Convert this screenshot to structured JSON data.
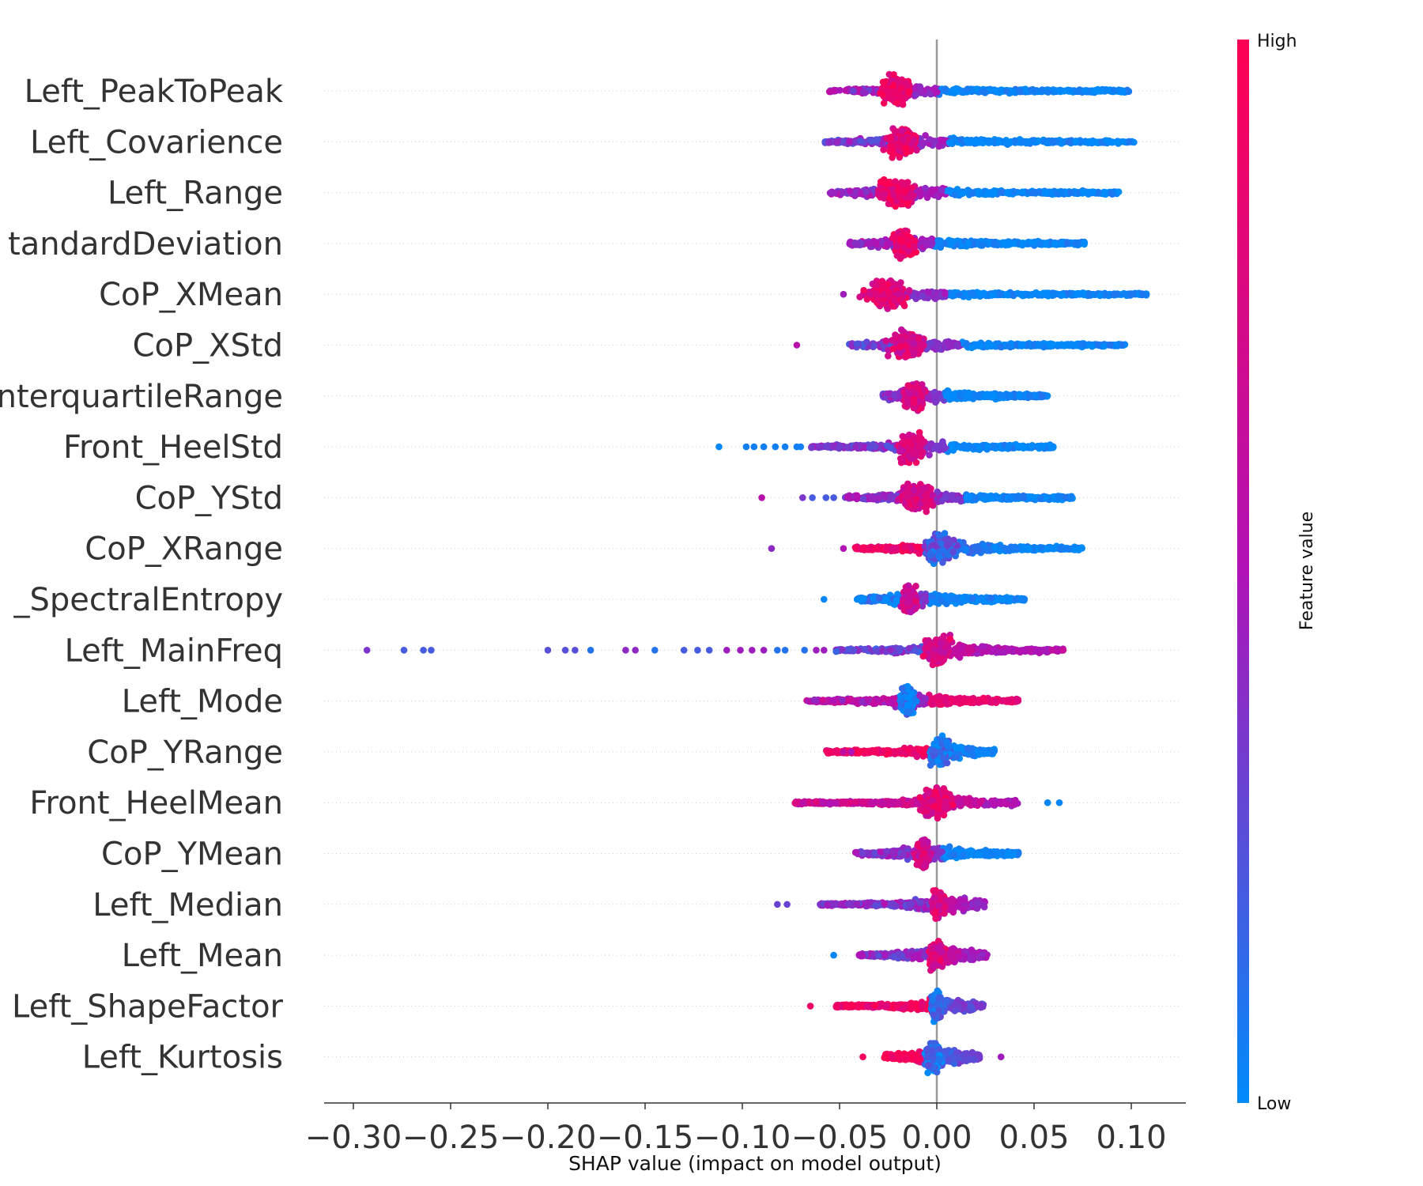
{
  "chart_data": {
    "type": "scatter",
    "subtype": "shap-beeswarm",
    "title": "",
    "xlabel": "SHAP value (impact on model output)",
    "xlim": [
      -0.315,
      0.127
    ],
    "x_ticks": [
      -0.3,
      -0.25,
      -0.2,
      -0.15,
      -0.1,
      -0.05,
      0.0,
      0.05,
      0.1
    ],
    "x_tick_labels": [
      "−0.30",
      "−0.25",
      "−0.20",
      "−0.15",
      "−0.10",
      "−0.05",
      "0.00",
      "0.05",
      "0.10"
    ],
    "zero_line": 0.0,
    "colorbar": {
      "label": "Feature value",
      "high_label": "High",
      "low_label": "Low",
      "high_color": "#ff0052",
      "mid_color": "#b012b6",
      "low_color": "#008bfb"
    },
    "features": [
      {
        "label": "Left_PeakToPeak",
        "min": -0.056,
        "max": 0.099,
        "cluster": -0.021,
        "cluster_hw": 0.011,
        "cluster_val": 0.85,
        "right_val": 0.02,
        "left_val": 0.45,
        "outliers": []
      },
      {
        "label": "Left_Covarience",
        "min": -0.058,
        "max": 0.102,
        "cluster": -0.018,
        "cluster_hw": 0.012,
        "cluster_val": 0.85,
        "right_val": 0.02,
        "left_val": 0.35,
        "outliers": []
      },
      {
        "label": "Left_Range",
        "min": -0.055,
        "max": 0.094,
        "cluster": -0.021,
        "cluster_hw": 0.013,
        "cluster_val": 0.9,
        "right_val": 0.02,
        "left_val": 0.45,
        "outliers": []
      },
      {
        "label": "tandardDeviation",
        "min": -0.045,
        "max": 0.076,
        "cluster": -0.017,
        "cluster_hw": 0.008,
        "cluster_val": 0.9,
        "right_val": 0.02,
        "left_val": 0.45,
        "outliers": []
      },
      {
        "label": "CoP_XMean",
        "min": -0.038,
        "max": 0.108,
        "cluster": -0.026,
        "cluster_hw": 0.016,
        "cluster_val": 0.8,
        "right_val": 0.02,
        "left_val": 0.55,
        "outliers": [
          {
            "x": -0.048,
            "v": 0.45
          }
        ]
      },
      {
        "label": "CoP_XStd",
        "min": -0.045,
        "max": 0.097,
        "cluster": -0.015,
        "cluster_hw": 0.014,
        "cluster_val": 0.75,
        "right_val": 0.02,
        "left_val": 0.3,
        "outliers": [
          {
            "x": -0.072,
            "v": 0.55
          }
        ]
      },
      {
        "label": "nterquartileRange",
        "min": -0.028,
        "max": 0.057,
        "cluster": -0.012,
        "cluster_hw": 0.008,
        "cluster_val": 0.75,
        "right_val": 0.02,
        "left_val": 0.4,
        "outliers": []
      },
      {
        "label": "Front_HeelStd",
        "min": -0.065,
        "max": 0.06,
        "cluster": -0.013,
        "cluster_hw": 0.009,
        "cluster_val": 0.75,
        "right_val": 0.02,
        "left_val": 0.35,
        "outliers": [
          {
            "x": -0.112,
            "v": 0.02
          },
          {
            "x": -0.098,
            "v": 0.05
          },
          {
            "x": -0.094,
            "v": 0.05
          },
          {
            "x": -0.089,
            "v": 0.05
          },
          {
            "x": -0.083,
            "v": 0.05
          },
          {
            "x": -0.078,
            "v": 0.05
          },
          {
            "x": -0.072,
            "v": 0.05
          },
          {
            "x": -0.07,
            "v": 0.05
          }
        ]
      },
      {
        "label": "CoP_YStd",
        "min": -0.048,
        "max": 0.07,
        "cluster": -0.011,
        "cluster_hw": 0.012,
        "cluster_val": 0.75,
        "right_val": 0.02,
        "left_val": 0.4,
        "outliers": [
          {
            "x": -0.09,
            "v": 0.55
          },
          {
            "x": -0.069,
            "v": 0.35
          },
          {
            "x": -0.064,
            "v": 0.2
          },
          {
            "x": -0.057,
            "v": 0.2
          },
          {
            "x": -0.053,
            "v": 0.2
          }
        ]
      },
      {
        "label": "CoP_XRange",
        "min": -0.042,
        "max": 0.075,
        "cluster": 0.002,
        "cluster_hw": 0.012,
        "cluster_val": 0.2,
        "right_val": 0.02,
        "left_val": 0.9,
        "outliers": [
          {
            "x": -0.085,
            "v": 0.4
          },
          {
            "x": -0.048,
            "v": 0.5
          }
        ]
      },
      {
        "label": "_SpectralEntropy",
        "min": -0.041,
        "max": 0.045,
        "cluster": -0.014,
        "cluster_hw": 0.005,
        "cluster_val": 0.7,
        "right_val": 0.02,
        "left_val": 0.05,
        "outliers": [
          {
            "x": -0.058,
            "v": 0.02
          }
        ]
      },
      {
        "label": "Left_MainFreq",
        "min": -0.052,
        "max": 0.065,
        "cluster": 0.0,
        "cluster_hw": 0.01,
        "cluster_val": 0.75,
        "right_val": 0.5,
        "left_val": 0.3,
        "outliers": [
          {
            "x": -0.293,
            "v": 0.35
          },
          {
            "x": -0.274,
            "v": 0.2
          },
          {
            "x": -0.264,
            "v": 0.2
          },
          {
            "x": -0.26,
            "v": 0.2
          },
          {
            "x": -0.2,
            "v": 0.25
          },
          {
            "x": -0.191,
            "v": 0.25
          },
          {
            "x": -0.186,
            "v": 0.25
          },
          {
            "x": -0.178,
            "v": 0.1
          },
          {
            "x": -0.16,
            "v": 0.4
          },
          {
            "x": -0.155,
            "v": 0.4
          },
          {
            "x": -0.145,
            "v": 0.1
          },
          {
            "x": -0.13,
            "v": 0.2
          },
          {
            "x": -0.123,
            "v": 0.2
          },
          {
            "x": -0.117,
            "v": 0.2
          },
          {
            "x": -0.108,
            "v": 0.45
          },
          {
            "x": -0.101,
            "v": 0.45
          },
          {
            "x": -0.095,
            "v": 0.45
          },
          {
            "x": -0.089,
            "v": 0.45
          },
          {
            "x": -0.082,
            "v": 0.1
          },
          {
            "x": -0.078,
            "v": 0.1
          },
          {
            "x": -0.068,
            "v": 0.1
          },
          {
            "x": -0.062,
            "v": 0.45
          },
          {
            "x": -0.058,
            "v": 0.45
          },
          {
            "x": 0.059,
            "v": 0.6
          },
          {
            "x": 0.065,
            "v": 0.65
          }
        ]
      },
      {
        "label": "Left_Mode",
        "min": -0.068,
        "max": 0.042,
        "cluster": -0.015,
        "cluster_hw": 0.005,
        "cluster_val": 0.05,
        "right_val": 0.85,
        "left_val": 0.55,
        "outliers": []
      },
      {
        "label": "CoP_YRange",
        "min": -0.057,
        "max": 0.03,
        "cluster": 0.002,
        "cluster_hw": 0.007,
        "cluster_val": 0.1,
        "right_val": 0.02,
        "left_val": 0.9,
        "outliers": [
          {
            "x": -0.048,
            "v": 0.6
          },
          {
            "x": -0.044,
            "v": 0.5
          }
        ]
      },
      {
        "label": "Front_HeelMean",
        "min": -0.074,
        "max": 0.042,
        "cluster": 0.0,
        "cluster_hw": 0.012,
        "cluster_val": 0.8,
        "right_val": 0.5,
        "left_val": 0.65,
        "outliers": [
          {
            "x": 0.057,
            "v": 0.02
          },
          {
            "x": 0.063,
            "v": 0.02
          }
        ]
      },
      {
        "label": "CoP_YMean",
        "min": -0.042,
        "max": 0.042,
        "cluster": -0.007,
        "cluster_hw": 0.005,
        "cluster_val": 0.7,
        "right_val": 0.02,
        "left_val": 0.4,
        "outliers": []
      },
      {
        "label": "Left_Median",
        "min": -0.06,
        "max": 0.025,
        "cluster": 0.001,
        "cluster_hw": 0.005,
        "cluster_val": 0.75,
        "right_val": 0.45,
        "left_val": 0.4,
        "outliers": [
          {
            "x": -0.082,
            "v": 0.3
          },
          {
            "x": -0.077,
            "v": 0.3
          }
        ]
      },
      {
        "label": "Left_Mean",
        "min": -0.04,
        "max": 0.026,
        "cluster": 0.0,
        "cluster_hw": 0.006,
        "cluster_val": 0.75,
        "right_val": 0.45,
        "left_val": 0.4,
        "outliers": [
          {
            "x": -0.053,
            "v": 0.02
          }
        ]
      },
      {
        "label": "Left_ShapeFactor",
        "min": -0.052,
        "max": 0.024,
        "cluster": 0.0,
        "cluster_hw": 0.004,
        "cluster_val": 0.1,
        "right_val": 0.3,
        "left_val": 0.9,
        "outliers": [
          {
            "x": -0.065,
            "v": 0.9
          }
        ]
      },
      {
        "label": "Left_Kurtosis",
        "min": -0.027,
        "max": 0.022,
        "cluster": -0.002,
        "cluster_hw": 0.006,
        "cluster_val": 0.1,
        "right_val": 0.3,
        "left_val": 0.95,
        "outliers": [
          {
            "x": -0.038,
            "v": 0.95
          },
          {
            "x": 0.033,
            "v": 0.45
          }
        ]
      }
    ]
  }
}
